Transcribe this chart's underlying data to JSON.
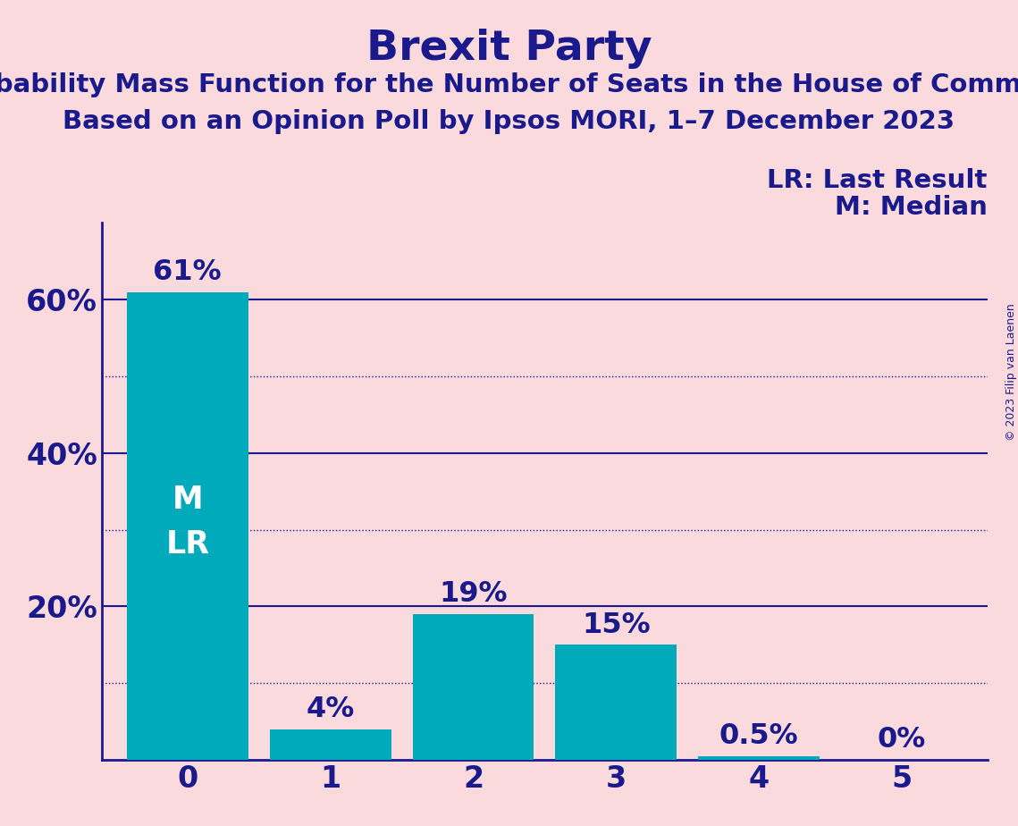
{
  "title": "Brexit Party",
  "subtitle1": "Probability Mass Function for the Number of Seats in the House of Commons",
  "subtitle2": "Based on an Opinion Poll by Ipsos MORI, 1–7 December 2023",
  "copyright": "© 2023 Filip van Laenen",
  "categories": [
    0,
    1,
    2,
    3,
    4,
    5
  ],
  "values": [
    61,
    4,
    19,
    15,
    0.5,
    0
  ],
  "bar_color": "#00AABB",
  "background_color": "#FADADD",
  "title_color": "#1a1a8c",
  "label_color": "#1a1a8c",
  "solid_line_color": "#1a1a8c",
  "dotted_line_color": "#1a1a8c",
  "ylim": [
    0,
    70
  ],
  "yticks": [
    20,
    40,
    60
  ],
  "solid_hlines": [
    20,
    40,
    60
  ],
  "dotted_hlines": [
    10,
    30,
    50
  ],
  "title_fontsize": 34,
  "subtitle_fontsize": 21,
  "tick_fontsize": 24,
  "bar_label_fontsize": 23,
  "legend_fontsize": 21,
  "inside_label_fontsize": 25,
  "copyright_fontsize": 9
}
